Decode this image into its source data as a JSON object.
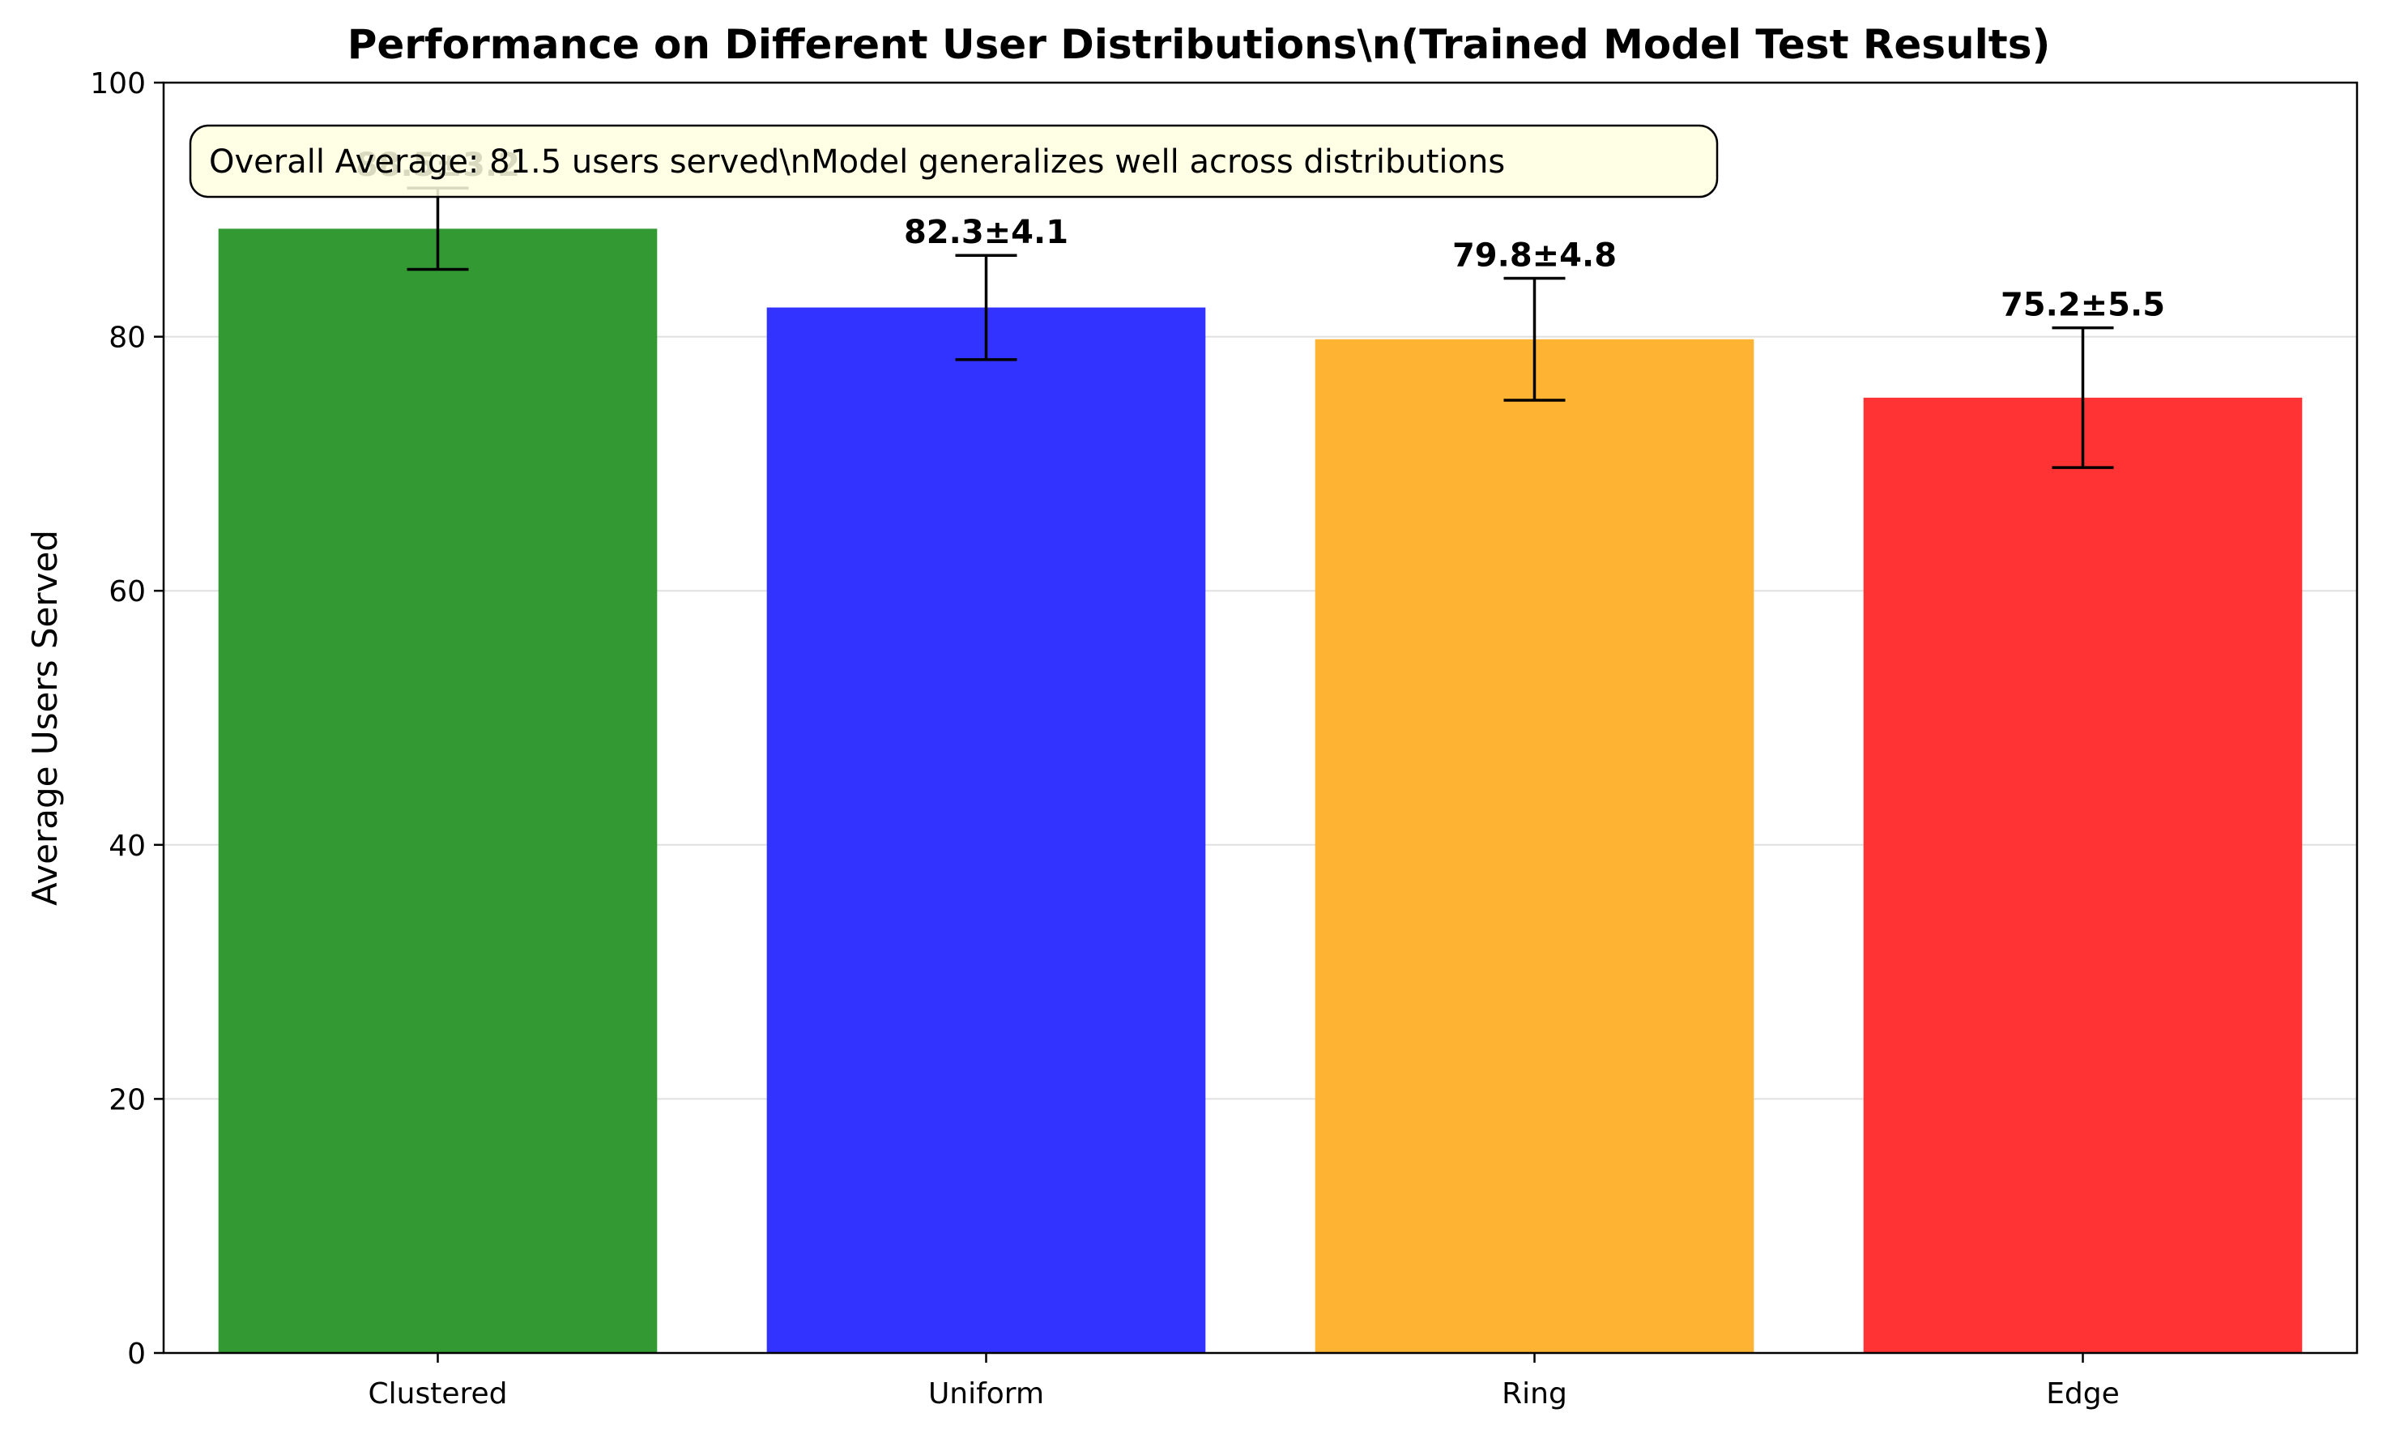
{
  "chart_data": {
    "type": "bar",
    "title": "Performance on Different User Distributions\\n(Trained Model Test Results)",
    "xlabel": "",
    "ylabel": "Average Users Served",
    "categories": [
      "Clustered",
      "Uniform",
      "Ring",
      "Edge"
    ],
    "values": [
      88.5,
      82.3,
      79.8,
      75.2
    ],
    "errors": [
      3.2,
      4.1,
      4.8,
      5.5
    ],
    "data_labels": [
      "88.5±3.2",
      "82.3±4.1",
      "79.8±4.8",
      "75.2±5.5"
    ],
    "colors": [
      "#339933",
      "#3333ff",
      "#ffb333",
      "#ff3333"
    ],
    "ylim": [
      0,
      100
    ],
    "yticks": [
      0,
      20,
      40,
      60,
      80,
      100
    ],
    "grid": "horizontal",
    "annotation": "Overall Average: 81.5 users served\\nModel generalizes well across distributions"
  }
}
